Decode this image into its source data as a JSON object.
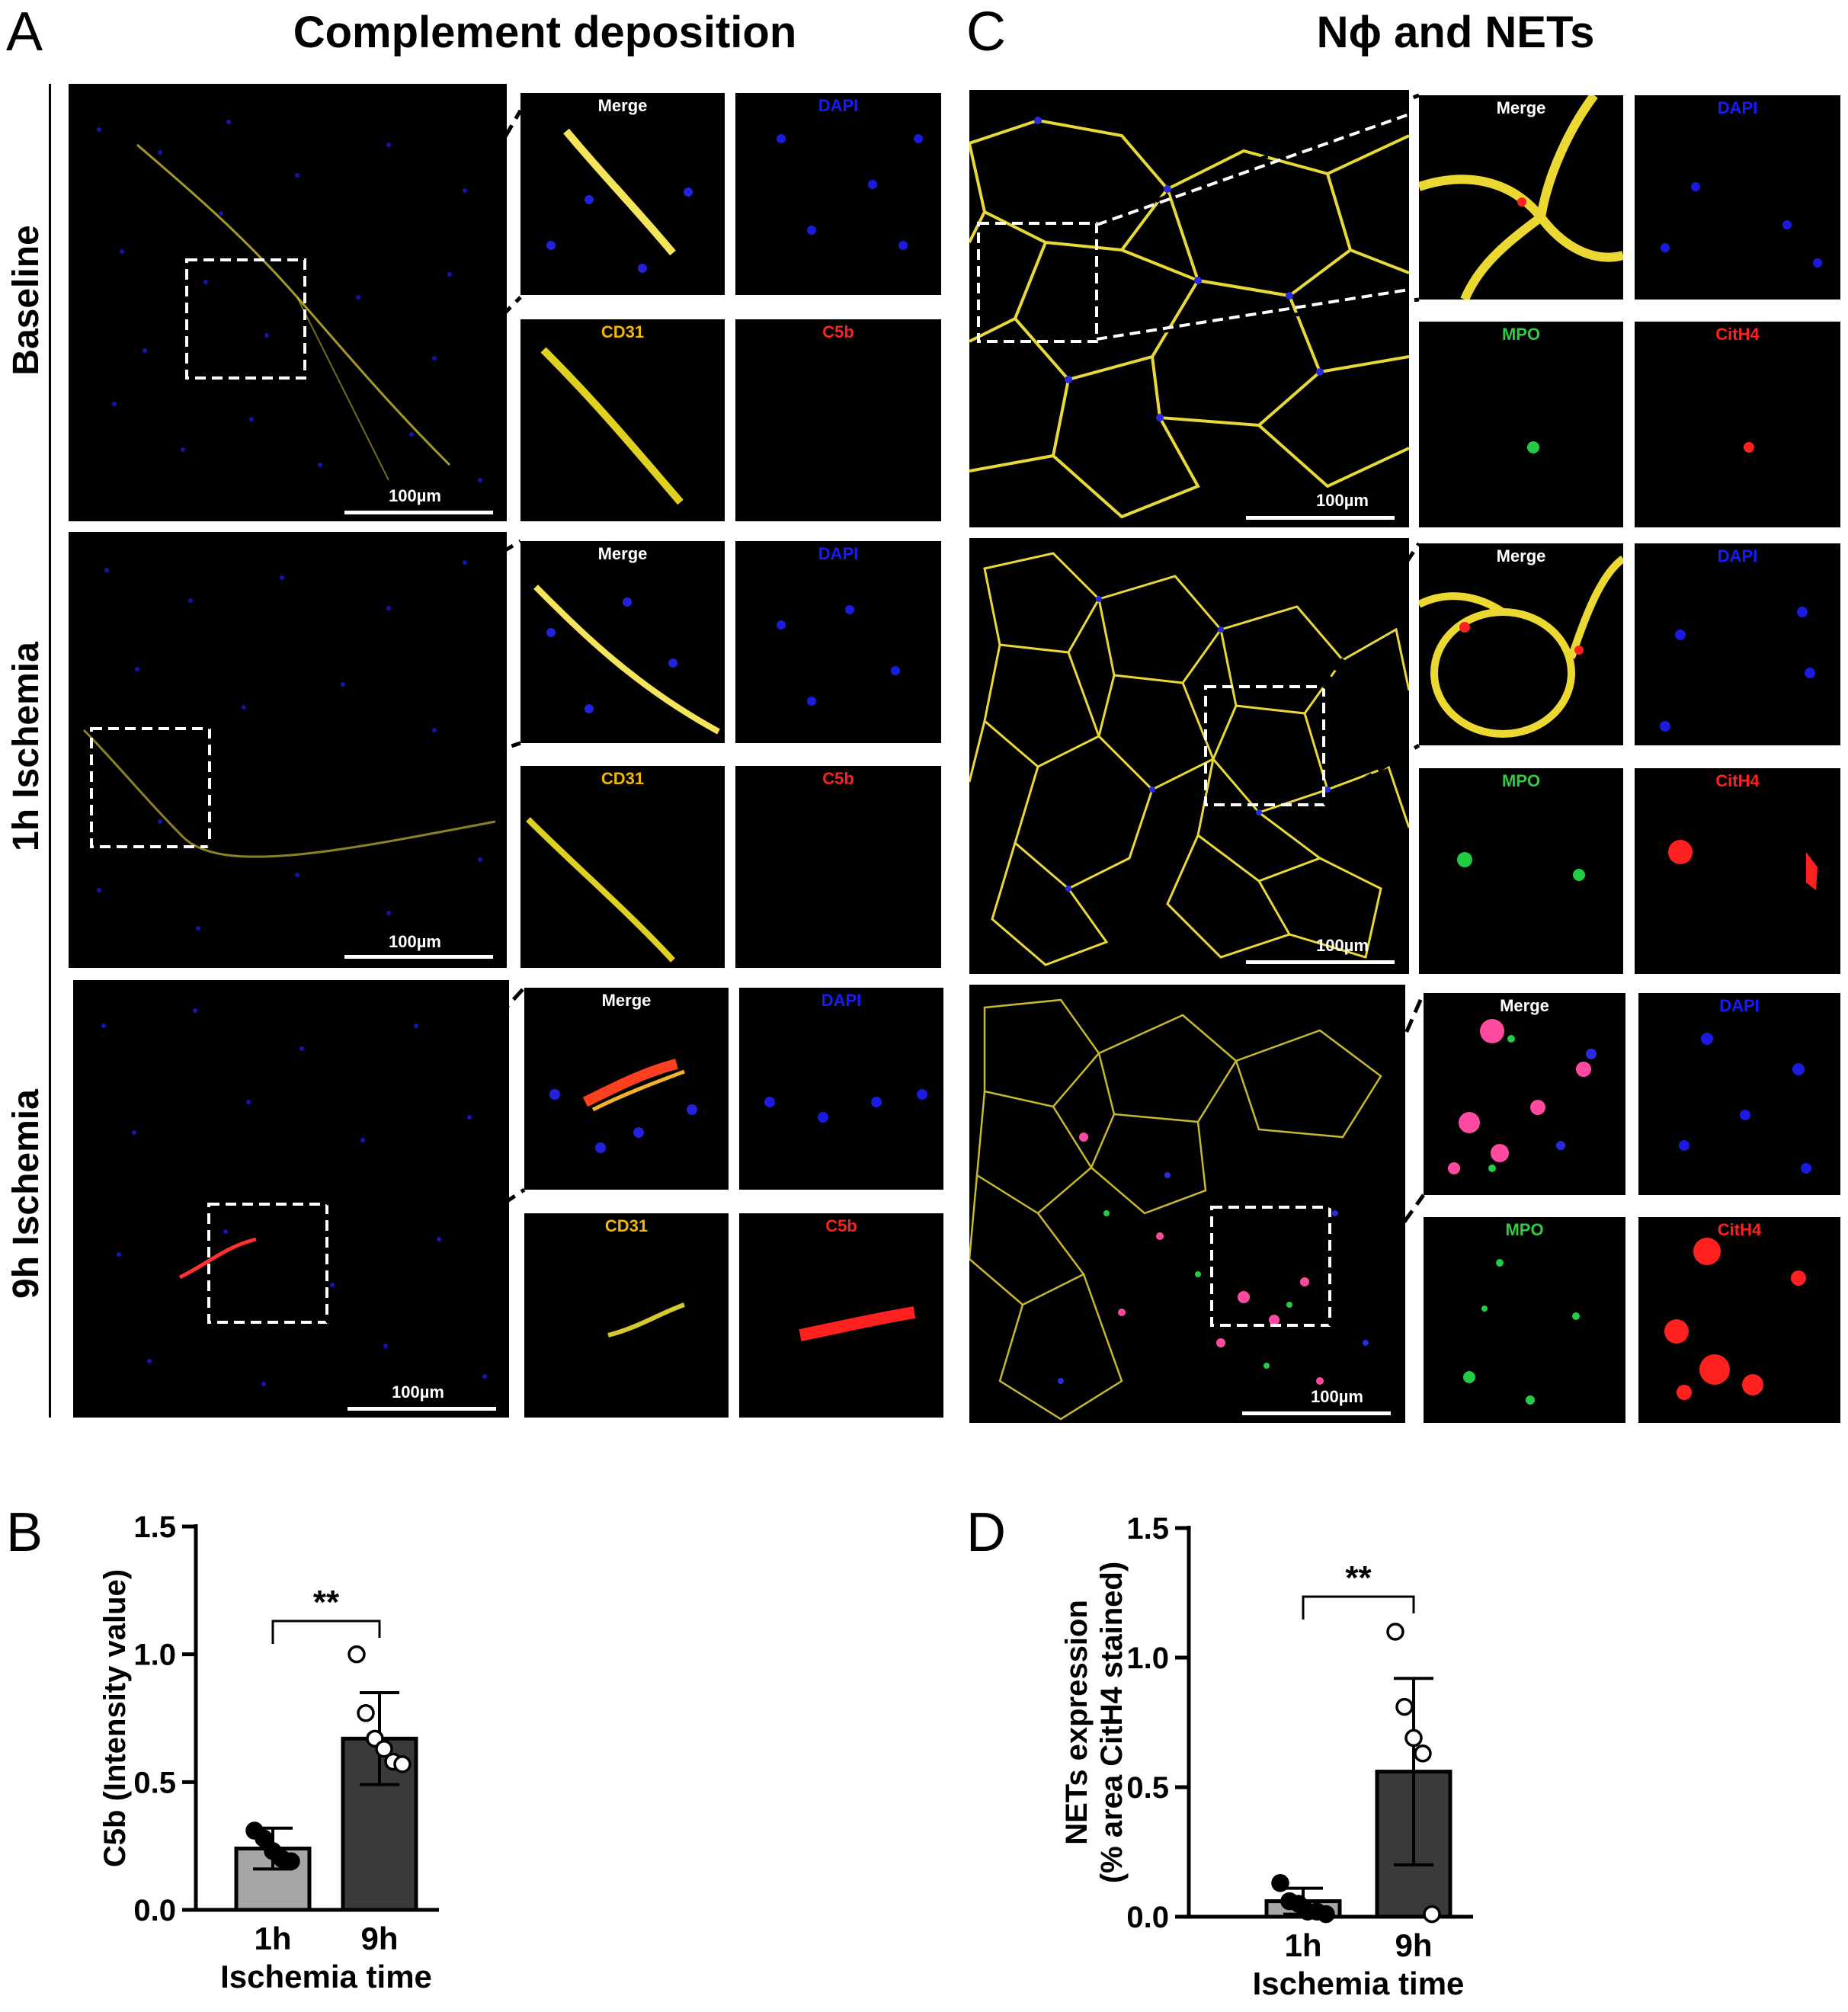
{
  "figure": {
    "panel_a": {
      "letter": "A",
      "heading": "Complement deposition",
      "rows": [
        "Baseline",
        "1h Ischemia",
        "9h Ischemia"
      ],
      "channels": [
        "Merge",
        "DAPI",
        "CD31",
        "C5b"
      ],
      "scale_bar": "100µm"
    },
    "panel_c": {
      "letter": "C",
      "heading": "Nϕ and NETs",
      "channels": [
        "Merge",
        "DAPI",
        "MPO",
        "CitH4"
      ],
      "scale_bar": "100µm"
    },
    "panel_b": {
      "letter": "B"
    },
    "panel_d": {
      "letter": "D"
    },
    "colors": {
      "merge_label": "#ffffff",
      "dapi_label": "#1a1aff",
      "cd31_label": "#f2b705",
      "c5b_label": "#ff2020",
      "mpo_label": "#2ecc40",
      "cith4_label": "#ff2020",
      "bar_1h": "#a6a6a6",
      "bar_9h": "#3a3a3a"
    }
  },
  "chart_data": [
    {
      "panel": "B",
      "type": "bar",
      "categories": [
        "1h",
        "9h"
      ],
      "values": [
        0.24,
        0.67
      ],
      "error": [
        0.08,
        0.18
      ],
      "points": [
        [
          0.31,
          0.28,
          0.23,
          0.2,
          0.19
        ],
        [
          1.0,
          0.77,
          0.67,
          0.63,
          0.58,
          0.57
        ]
      ],
      "xlabel": "Ischemia time",
      "ylabel": "C5b (Intensity value)",
      "ylim": [
        0,
        1.5
      ],
      "yticks": [
        "0.0",
        "0.5",
        "1.0",
        "1.5"
      ],
      "significance": "**"
    },
    {
      "panel": "D",
      "type": "bar",
      "categories": [
        "1h",
        "9h"
      ],
      "values": [
        0.06,
        0.56
      ],
      "error": [
        0.05,
        0.36
      ],
      "points": [
        [
          0.13,
          0.06,
          0.05,
          0.02,
          0.02,
          0.01
        ],
        [
          1.1,
          0.81,
          0.69,
          0.63,
          0.01
        ]
      ],
      "xlabel": "Ischemia time",
      "ylabel": "NETs expression\n(% area CitH4 stained)",
      "ylim": [
        0,
        1.5
      ],
      "yticks": [
        "0.0",
        "0.5",
        "1.0",
        "1.5"
      ],
      "significance": "**"
    }
  ]
}
